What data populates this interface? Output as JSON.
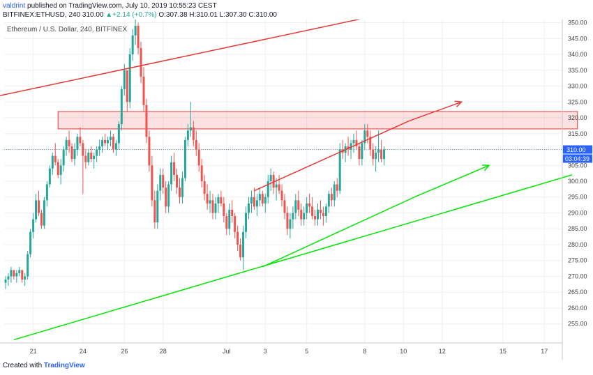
{
  "header": {
    "author": "valdrint",
    "published": "published on TradingView.com, July 10, 2019 10:55:23 CEST",
    "symbol": "BITFINEX:ETHUSD, 240",
    "last": "310.00",
    "change": "+2.14 (+0.7%)",
    "ohlc_o": "O:307.38",
    "ohlc_h": "H:310.01",
    "ohlc_l": "L:307.30",
    "ohlc_c": "C:310.00"
  },
  "chart_data": {
    "type": "candlestick",
    "legend": "Ethereum / U.S. Dollar, 240, BITFINEX",
    "x_tick_labels": [
      "21",
      "24",
      "26",
      "28",
      "Jul",
      "3",
      "5",
      "8",
      "10",
      "12",
      "15",
      "17"
    ],
    "x_tick_slots": [
      10,
      28,
      43,
      57,
      80,
      94,
      109,
      130,
      144,
      158,
      180,
      195
    ],
    "y_ticks": [
      255,
      260,
      265,
      270,
      275,
      280,
      285,
      290,
      295,
      300,
      305,
      310,
      315,
      320,
      325,
      330,
      335,
      340,
      345,
      350
    ],
    "ylim": [
      249,
      351
    ],
    "slot_count": 202,
    "last_price_label": "310.00",
    "countdown_label": "03:04:39",
    "candles": [
      [
        268,
        270,
        266,
        269
      ],
      [
        269,
        271,
        267,
        270
      ],
      [
        270,
        273,
        268,
        272
      ],
      [
        272,
        271,
        269,
        270
      ],
      [
        270,
        272,
        268,
        271
      ],
      [
        271,
        273,
        270,
        272
      ],
      [
        272,
        271,
        268,
        269
      ],
      [
        269,
        271,
        267,
        270
      ],
      [
        270,
        278,
        269,
        277
      ],
      [
        277,
        285,
        276,
        284
      ],
      [
        284,
        290,
        282,
        288
      ],
      [
        288,
        296,
        287,
        294
      ],
      [
        294,
        297,
        289,
        290
      ],
      [
        290,
        291,
        285,
        286
      ],
      [
        286,
        295,
        285,
        294
      ],
      [
        294,
        300,
        292,
        299
      ],
      [
        299,
        305,
        298,
        304
      ],
      [
        304,
        309,
        302,
        308
      ],
      [
        308,
        312,
        305,
        306
      ],
      [
        306,
        307,
        301,
        302
      ],
      [
        302,
        307,
        299,
        305
      ],
      [
        305,
        311,
        303,
        310
      ],
      [
        310,
        314,
        308,
        313
      ],
      [
        313,
        316,
        309,
        311
      ],
      [
        311,
        312,
        306,
        307
      ],
      [
        307,
        312,
        305,
        310
      ],
      [
        310,
        315,
        308,
        314
      ],
      [
        314,
        317,
        311,
        312
      ],
      [
        312,
        313,
        296,
        308
      ],
      [
        308,
        310,
        304,
        306
      ],
      [
        306,
        310,
        305,
        309
      ],
      [
        309,
        311,
        306,
        307
      ],
      [
        307,
        309,
        304,
        308
      ],
      [
        308,
        311,
        306,
        310
      ],
      [
        310,
        313,
        308,
        311
      ],
      [
        311,
        314,
        309,
        313
      ],
      [
        313,
        315,
        311,
        312
      ],
      [
        312,
        314,
        310,
        313
      ],
      [
        313,
        316,
        311,
        314
      ],
      [
        314,
        315,
        309,
        310
      ],
      [
        310,
        313,
        308,
        312
      ],
      [
        312,
        319,
        310,
        318
      ],
      [
        318,
        330,
        316,
        329
      ],
      [
        329,
        337,
        327,
        335
      ],
      [
        335,
        334,
        322,
        325
      ],
      [
        325,
        342,
        323,
        340
      ],
      [
        340,
        348,
        338,
        346
      ],
      [
        346,
        351,
        343,
        349
      ],
      [
        349,
        350,
        340,
        342
      ],
      [
        342,
        344,
        331,
        333
      ],
      [
        333,
        336,
        322,
        324
      ],
      [
        324,
        326,
        312,
        314
      ],
      [
        314,
        316,
        303,
        305
      ],
      [
        305,
        308,
        292,
        294
      ],
      [
        294,
        297,
        285,
        287
      ],
      [
        287,
        299,
        285,
        297
      ],
      [
        297,
        304,
        294,
        302
      ],
      [
        302,
        304,
        296,
        298
      ],
      [
        298,
        300,
        290,
        292
      ],
      [
        292,
        300,
        290,
        299
      ],
      [
        299,
        308,
        297,
        306
      ],
      [
        306,
        309,
        300,
        302
      ],
      [
        302,
        304,
        296,
        298
      ],
      [
        298,
        301,
        293,
        295
      ],
      [
        295,
        303,
        293,
        301
      ],
      [
        301,
        314,
        300,
        313
      ],
      [
        313,
        318,
        311,
        316
      ],
      [
        316,
        325,
        314,
        317
      ],
      [
        317,
        319,
        311,
        313
      ],
      [
        313,
        316,
        308,
        310
      ],
      [
        310,
        312,
        303,
        305
      ],
      [
        305,
        307,
        298,
        300
      ],
      [
        300,
        302,
        294,
        296
      ],
      [
        296,
        299,
        291,
        293
      ],
      [
        293,
        297,
        290,
        294
      ],
      [
        294,
        296,
        288,
        290
      ],
      [
        290,
        295,
        288,
        293
      ],
      [
        293,
        296,
        290,
        295
      ],
      [
        295,
        297,
        292,
        293
      ],
      [
        293,
        295,
        287,
        289
      ],
      [
        289,
        290,
        283,
        285
      ],
      [
        285,
        293,
        283,
        291
      ],
      [
        291,
        294,
        287,
        289
      ],
      [
        289,
        290,
        282,
        284
      ],
      [
        284,
        286,
        278,
        280
      ],
      [
        280,
        282,
        275,
        276
      ],
      [
        276,
        286,
        272,
        284
      ],
      [
        284,
        292,
        282,
        290
      ],
      [
        290,
        295,
        288,
        293
      ],
      [
        293,
        297,
        290,
        295
      ],
      [
        295,
        298,
        291,
        292
      ],
      [
        292,
        296,
        289,
        294
      ],
      [
        294,
        298,
        292,
        296
      ],
      [
        296,
        297,
        292,
        293
      ],
      [
        293,
        296,
        290,
        295
      ],
      [
        295,
        302,
        293,
        300
      ],
      [
        300,
        304,
        297,
        302
      ],
      [
        302,
        303,
        296,
        298
      ],
      [
        298,
        301,
        294,
        299
      ],
      [
        299,
        302,
        296,
        297
      ],
      [
        297,
        299,
        292,
        294
      ],
      [
        294,
        296,
        288,
        290
      ],
      [
        290,
        292,
        283,
        285
      ],
      [
        285,
        290,
        282,
        288
      ],
      [
        288,
        292,
        285,
        290
      ],
      [
        290,
        296,
        288,
        294
      ],
      [
        294,
        297,
        289,
        291
      ],
      [
        291,
        293,
        286,
        288
      ],
      [
        288,
        292,
        286,
        290
      ],
      [
        290,
        295,
        288,
        293
      ],
      [
        293,
        296,
        290,
        292
      ],
      [
        292,
        295,
        288,
        289
      ],
      [
        289,
        291,
        286,
        288
      ],
      [
        288,
        293,
        286,
        291
      ],
      [
        291,
        294,
        288,
        290
      ],
      [
        290,
        292,
        286,
        289
      ],
      [
        289,
        293,
        287,
        292
      ],
      [
        292,
        297,
        290,
        296
      ],
      [
        296,
        298,
        292,
        294
      ],
      [
        294,
        300,
        292,
        299
      ],
      [
        299,
        301,
        295,
        297
      ],
      [
        297,
        312,
        296,
        310
      ],
      [
        310,
        313,
        307,
        309
      ],
      [
        309,
        312,
        306,
        311
      ],
      [
        311,
        314,
        308,
        310
      ],
      [
        310,
        313,
        307,
        312
      ],
      [
        312,
        315,
        309,
        313
      ],
      [
        313,
        316,
        310,
        311
      ],
      [
        311,
        312,
        305,
        307
      ],
      [
        307,
        313,
        305,
        312
      ],
      [
        312,
        318,
        310,
        316
      ],
      [
        316,
        318,
        312,
        314
      ],
      [
        314,
        316,
        308,
        310
      ],
      [
        310,
        312,
        305,
        307
      ],
      [
        307,
        311,
        303,
        309
      ],
      [
        309,
        316,
        306,
        310
      ],
      [
        310,
        313,
        306,
        307
      ],
      [
        307,
        311,
        305,
        310
      ]
    ],
    "annotations": [
      {
        "shape": "trendline",
        "color": "#e53935",
        "from": [
          -2,
          327
        ],
        "to": [
          133,
          352
        ]
      },
      {
        "shape": "trendline",
        "color": "#e53935",
        "from": [
          90,
          297
        ],
        "to": [
          146,
          319
        ]
      },
      {
        "shape": "arrow",
        "color": "#e53935",
        "from": [
          146,
          319
        ],
        "to": [
          165,
          325
        ]
      },
      {
        "shape": "trendline",
        "color": "#00e600",
        "from": [
          3,
          250
        ],
        "to": [
          205,
          302
        ]
      },
      {
        "shape": "trendline",
        "color": "#00e600",
        "from": [
          93,
          273
        ],
        "to": [
          148,
          295
        ]
      },
      {
        "shape": "arrow",
        "color": "#00e600",
        "from": [
          148,
          295
        ],
        "to": [
          175,
          305
        ]
      },
      {
        "shape": "rect",
        "color": "#e53935",
        "x": [
          19,
          207
        ],
        "y": [
          316.5,
          322
        ]
      },
      {
        "shape": "hline",
        "color": "#5b9bd5",
        "y": 310
      }
    ]
  }
}
